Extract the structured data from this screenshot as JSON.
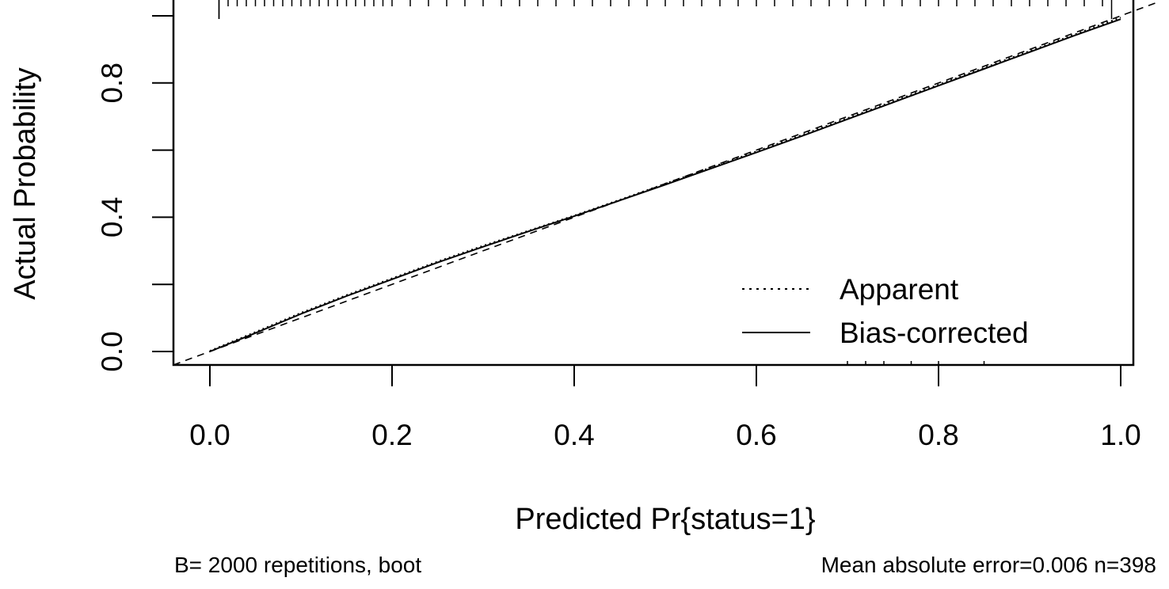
{
  "chart_data": {
    "type": "line",
    "title": "",
    "xlabel": "Predicted Pr{status=1}",
    "ylabel": "Actual Probability",
    "xlim": [
      -0.04,
      1.04
    ],
    "ylim": [
      -0.04,
      1.04
    ],
    "x_ticks": [
      0.0,
      0.2,
      0.4,
      0.6,
      0.8,
      1.0
    ],
    "x_tick_labels": [
      "0.0",
      "0.2",
      "0.4",
      "0.6",
      "0.8",
      "1.0"
    ],
    "y_ticks": [
      0.0,
      0.2,
      0.4,
      0.6,
      0.8,
      1.0
    ],
    "y_tick_labels": [
      "0.0",
      "",
      "0.4",
      "",
      "0.8",
      ""
    ],
    "grid": false,
    "legend_position": "bottom-right",
    "reference_line": {
      "style": "dashed",
      "x": [
        -0.04,
        1.04
      ],
      "y": [
        -0.04,
        1.04
      ]
    },
    "series": [
      {
        "name": "Apparent",
        "style": "dotted",
        "x": [
          0.0,
          0.05,
          0.1,
          0.15,
          0.2,
          0.25,
          0.3,
          0.35,
          0.4,
          0.45,
          0.5,
          0.55,
          0.6,
          0.65,
          0.7,
          0.75,
          0.8,
          0.85,
          0.9,
          0.95,
          1.0
        ],
        "y": [
          0.002,
          0.058,
          0.115,
          0.168,
          0.218,
          0.268,
          0.315,
          0.36,
          0.405,
          0.452,
          0.5,
          0.548,
          0.596,
          0.645,
          0.695,
          0.745,
          0.795,
          0.845,
          0.895,
          0.945,
          0.995
        ]
      },
      {
        "name": "Bias-corrected",
        "style": "solid",
        "x": [
          0.0,
          0.05,
          0.1,
          0.15,
          0.2,
          0.25,
          0.3,
          0.35,
          0.4,
          0.45,
          0.5,
          0.55,
          0.6,
          0.65,
          0.7,
          0.75,
          0.8,
          0.85,
          0.9,
          0.95,
          1.0
        ],
        "y": [
          0.0,
          0.055,
          0.112,
          0.165,
          0.215,
          0.265,
          0.312,
          0.358,
          0.403,
          0.45,
          0.497,
          0.545,
          0.593,
          0.642,
          0.692,
          0.742,
          0.792,
          0.842,
          0.892,
          0.942,
          0.99
        ]
      }
    ],
    "rug_top": [
      0.01,
      0.01,
      0.02,
      0.03,
      0.04,
      0.05,
      0.06,
      0.07,
      0.08,
      0.09,
      0.1,
      0.11,
      0.12,
      0.13,
      0.14,
      0.15,
      0.16,
      0.17,
      0.18,
      0.19,
      0.2,
      0.22,
      0.24,
      0.26,
      0.28,
      0.3,
      0.32,
      0.34,
      0.36,
      0.38,
      0.4,
      0.42,
      0.44,
      0.46,
      0.48,
      0.5,
      0.52,
      0.54,
      0.56,
      0.58,
      0.6,
      0.62,
      0.64,
      0.66,
      0.68,
      0.7,
      0.72,
      0.74,
      0.76,
      0.78,
      0.8,
      0.82,
      0.84,
      0.86,
      0.88,
      0.9,
      0.92,
      0.94,
      0.96,
      0.98,
      0.99
    ],
    "rug_bottom": [
      0.7,
      0.72,
      0.74,
      0.77,
      0.8,
      0.85
    ],
    "footnote_left": "B= 2000 repetitions, boot",
    "footnote_right": "Mean absolute error=0.006 n=398"
  }
}
